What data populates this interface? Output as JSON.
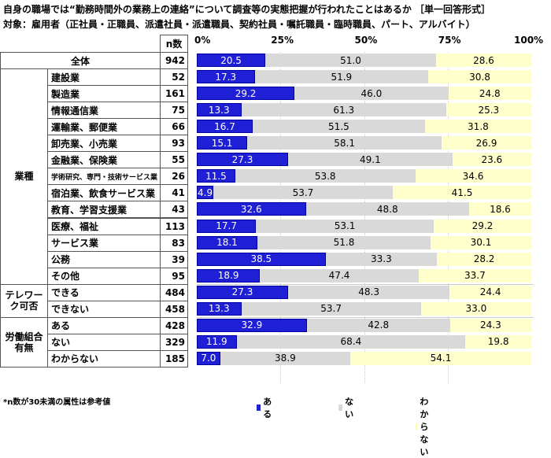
{
  "chart_data": {
    "type": "bar",
    "stacked": true,
    "orientation": "horizontal",
    "title": "自身の職場では“勤務時間外の業務上の連絡”について調査等の実態把握が行われたことはあるか ［単一回答形式］",
    "subtitle": "対象：雇用者（正社員・正職員、派遣社員・派遣職員、契約社員・嘱託職員・臨時職員、パート、アルバイト）",
    "n_header": "n数",
    "x_ticks": [
      "0%",
      "25%",
      "50%",
      "75%",
      "100%"
    ],
    "xlim": [
      0,
      100
    ],
    "colors": {
      "ある": "#1f1fd6",
      "ない": "#d9d9d9",
      "わからない": "#ffffcc"
    },
    "series_names": [
      "ある",
      "ない",
      "わからない"
    ],
    "groups": [
      {
        "label": "",
        "rows": [
          {
            "label": "全体",
            "n": "942",
            "values": [
              20.5,
              51.0,
              28.6
            ]
          }
        ]
      },
      {
        "label": "業種",
        "rows": [
          {
            "label": "建設業",
            "n": "52",
            "values": [
              17.3,
              51.9,
              30.8
            ]
          },
          {
            "label": "製造業",
            "n": "161",
            "values": [
              29.2,
              46.0,
              24.8
            ]
          },
          {
            "label": "情報通信業",
            "n": "75",
            "values": [
              13.3,
              61.3,
              25.3
            ]
          },
          {
            "label": "運輸業、郵便業",
            "n": "66",
            "values": [
              16.7,
              51.5,
              31.8
            ]
          },
          {
            "label": "卸売業、小売業",
            "n": "93",
            "values": [
              15.1,
              58.1,
              26.9
            ]
          },
          {
            "label": "金融業、保険業",
            "n": "55",
            "values": [
              27.3,
              49.1,
              23.6
            ]
          },
          {
            "label": "学術研究、専門・技術サービス業",
            "n": "26",
            "values": [
              11.5,
              53.8,
              34.6
            ]
          },
          {
            "label": "宿泊業、飲食サービス業",
            "n": "41",
            "values": [
              4.9,
              53.7,
              41.5
            ]
          },
          {
            "label": "教育、学習支援業",
            "n": "43",
            "values": [
              32.6,
              48.8,
              18.6
            ]
          },
          {
            "label": "医療、福祉",
            "n": "113",
            "values": [
              17.7,
              53.1,
              29.2
            ]
          },
          {
            "label": "サービス業",
            "n": "83",
            "values": [
              18.1,
              51.8,
              30.1
            ]
          },
          {
            "label": "公務",
            "n": "39",
            "values": [
              38.5,
              33.3,
              28.2
            ]
          },
          {
            "label": "その他",
            "n": "95",
            "values": [
              18.9,
              47.4,
              33.7
            ]
          }
        ]
      },
      {
        "label": "テレワーク可否",
        "rows": [
          {
            "label": "できる",
            "n": "484",
            "values": [
              27.3,
              48.3,
              24.4
            ]
          },
          {
            "label": "できない",
            "n": "458",
            "values": [
              13.3,
              53.7,
              33.0
            ]
          }
        ]
      },
      {
        "label": "労働組合有無",
        "rows": [
          {
            "label": "ある",
            "n": "428",
            "values": [
              32.9,
              42.8,
              24.3
            ]
          },
          {
            "label": "ない",
            "n": "329",
            "values": [
              11.9,
              68.4,
              19.8
            ]
          },
          {
            "label": "わからない",
            "n": "185",
            "values": [
              7.0,
              38.9,
              54.1
            ]
          }
        ]
      }
    ],
    "note": "*n数が30未満の属性は参考値",
    "legend_position": "bottom"
  }
}
